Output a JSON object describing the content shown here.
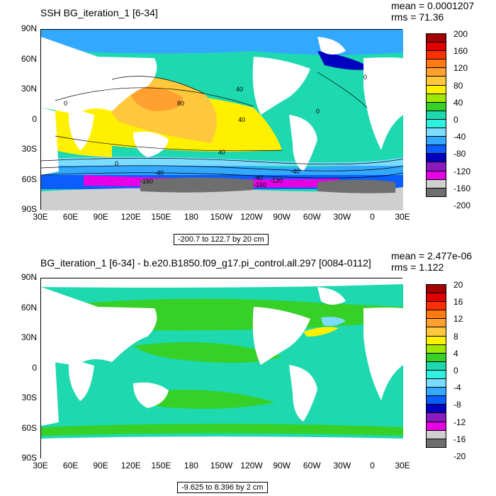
{
  "palette": [
    "#a50000",
    "#e00000",
    "#ff3000",
    "#ff7a10",
    "#ffa030",
    "#ffc83c",
    "#fff000",
    "#9fe800",
    "#36d026",
    "#1ed8b0",
    "#30f0e0",
    "#7cdcff",
    "#32a8ff",
    "#0a5dff",
    "#0000c0",
    "#8a1ac0",
    "#e600e6",
    "#cfcfcf",
    "#6e6e6e"
  ],
  "land_color": "#ffffff",
  "top": {
    "title": "SSH BG_iteration_1 [6-34]",
    "stats": {
      "mean": "mean = 0.0001207",
      "rms": "rms = 71.36"
    },
    "range_label": "-200.7 to 122.7 by 20 cm",
    "y_ticks": [
      "90N",
      "60N",
      "30N",
      "0",
      "30S",
      "60S",
      "90S"
    ],
    "x_ticks": [
      "30E",
      "60E",
      "90E",
      "120E",
      "150E",
      "180",
      "150W",
      "120W",
      "90W",
      "60W",
      "30W",
      "0",
      "30E"
    ],
    "colorbar_labels": [
      "200",
      "160",
      "120",
      "80",
      "40",
      "0",
      "-40",
      "-80",
      "-120",
      "-160",
      "-200"
    ],
    "contour_labels": [
      "0",
      "40",
      "80",
      "40",
      "40",
      "0",
      "-40",
      "-160",
      "-120",
      "-40",
      "0",
      "0",
      "-40",
      "-160"
    ]
  },
  "bottom": {
    "title": "BG_iteration_1 [6-34] - b.e20.B1850.f09_g17.pi_control.all.297 [0084-0112]",
    "stats": {
      "mean": "mean = 2.477e-06",
      "rms": "rms = 1.122"
    },
    "range_label": "-9.625 to 8.396 by 2 cm",
    "y_ticks": [
      "90N",
      "60N",
      "30N",
      "0",
      "30S",
      "60S",
      "90S"
    ],
    "x_ticks": [
      "30E",
      "60E",
      "90E",
      "120E",
      "150E",
      "180",
      "150W",
      "120W",
      "90W",
      "60W",
      "30W",
      "0",
      "30E"
    ],
    "colorbar_labels": [
      "20",
      "16",
      "12",
      "8",
      "4",
      "0",
      "-4",
      "-8",
      "-12",
      "-16",
      "-20"
    ]
  }
}
